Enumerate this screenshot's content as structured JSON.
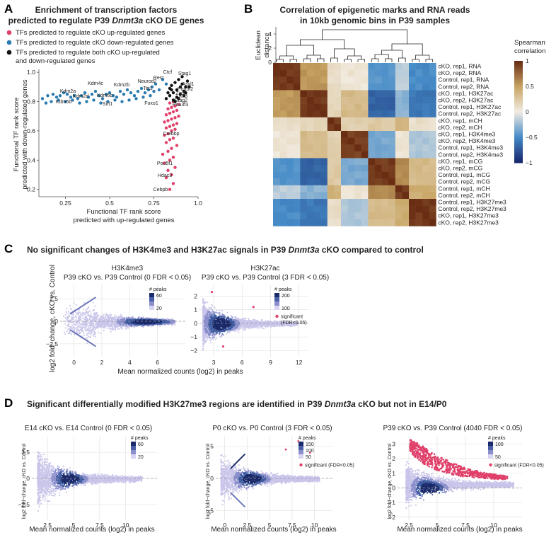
{
  "panels": {
    "A": {
      "letter": "A",
      "title_line1": "Enrichment of transcription factors",
      "title_line2_pre": "predicted to regulate P39 ",
      "title_line2_gene": "Dnmt3a",
      "title_line2_post": " cKO DE genes",
      "legend": [
        {
          "label": "TFs predicted to regulate cKO up-regulated genes",
          "color": "#e0406a"
        },
        {
          "label": "TFs predicted to regulate cKO down-regulated genes",
          "color": "#2b7bb0"
        },
        {
          "label": "TFs predicted to regulate both cKO up-regulated",
          "color": "#111111"
        },
        {
          "label": "and down-regulated genes",
          "color": ""
        }
      ],
      "ylabel_1": "Functional TF rank score",
      "ylabel_2": "predicted with down-regulated genes",
      "xlabel_1": "Functional TF rank score",
      "xlabel_2": "predicted with up-regulated genes"
    },
    "B": {
      "letter": "B",
      "title_line1": "Correlation of epigenetic marks and RNA reads",
      "title_line2": "in 10kb genomic bins in P39 samples",
      "dendro_ylabel_1": "Euclidean",
      "dendro_ylabel_2": "distance",
      "dendro_ticks": [
        "0",
        "2",
        "4"
      ],
      "colorbar_title_1": "Spearman",
      "colorbar_title_2": "correlation",
      "colorbar_ticks": [
        "1",
        "0.5",
        "0",
        "−0.5",
        "−1"
      ],
      "rows": [
        "cKO, rep1, RNA",
        "cKO, rep2, RNA",
        "Control, rep1, RNA",
        "Control, rep2, RNA",
        "cKO, rep1, H3K27ac",
        "cKO, rep2, H3K27ac",
        "Control, rep1, H3K27ac",
        "Control, rep2, H3K27ac",
        "cKO, rep1, mCH",
        "cKO, rep2, mCH",
        "cKO, rep1, H3K4me3",
        "cKO, rep2, H3K4me3",
        "Control, rep1, H3K4me3",
        "Control, rep2, H3K4me3",
        "cKO, rep1, mCG",
        "cKO, rep2, mCG",
        "Control, rep1, mCG",
        "Control, rep2, mCG",
        "Control, rep1, mCH",
        "Control, rep2, mCH",
        "Control, rep1, H3K27me3",
        "Control, rep2, H3K27me3",
        "cKO, rep1, H3K27me3",
        "cKO, rep2, H3K27me3"
      ]
    },
    "C": {
      "letter": "C",
      "title_pre": "No significant changes of H3K4me3 and H3K27ac signals in P39 ",
      "title_gene": "Dnmt3a",
      "title_post": " cKO compared to control",
      "ylabel": "log2 fold−change, cKO vs. Control",
      "xlabel": "Mean normalized counts (log2) in peaks",
      "plots": [
        {
          "title1": "H3K4me3",
          "title2": "P39 cKO vs. P39 Control (0 FDR < 0.05)",
          "legend_title": "# peaks",
          "legend_ticks": [
            "60",
            "20"
          ],
          "sig": ""
        },
        {
          "title1": "H3K27ac",
          "title2": "P39 cKO vs. P39 Control (3 FDR < 0.05)",
          "legend_title": "# peaks",
          "legend_ticks": [
            "200",
            "100"
          ],
          "sig1": "significant",
          "sig2": "(FDR<0.05)"
        }
      ]
    },
    "D": {
      "letter": "D",
      "title_pre": "Significant differentially modified H3K27me3 regions are identified in P39 ",
      "title_gene": "Dnmt3a",
      "title_post": " cKO but not in E14/P0",
      "ylabel": "log2 fold−change, cKO vs. Control",
      "xlabel": "Mean normalized counts (log2) in peaks",
      "plots": [
        {
          "title": "E14 cKO vs. E14 Control (0 FDR < 0.05)",
          "legend_title": "# peaks",
          "legend_ticks": [
            "60",
            "20"
          ],
          "sig": ""
        },
        {
          "title": "P0 cKO vs. P0 Control (3 FDR < 0.05)",
          "legend_title": "# peaks",
          "legend_ticks": [
            "150",
            "100",
            "50"
          ],
          "sig": "significant (FDR<0.05)"
        },
        {
          "title": "P39 cKO vs. P39 Control (4040 FDR < 0.05)",
          "legend_title": "# peaks",
          "legend_ticks": [
            "100",
            "50"
          ],
          "sig": "significant (FDR<0.05)"
        }
      ]
    }
  },
  "chart_data": [
    {
      "type": "scatter",
      "title": "Enrichment of transcription factors predicted to regulate P39 Dnmt3a cKO DE genes",
      "xlabel": "Functional TF rank score predicted with up-regulated genes",
      "ylabel": "Functional TF rank score predicted with down-regulated genes",
      "xlim": [
        0.1,
        1.0
      ],
      "ylim": [
        0.15,
        1.02
      ],
      "xticks": [
        "0.25",
        "0.5",
        "0.75",
        "1.0"
      ],
      "yticks": [
        "0.2",
        "0.4",
        "0.6",
        "0.8",
        "1.0"
      ],
      "series": [
        {
          "name": "down",
          "color": "#2b7bb0",
          "points": [
            [
              0.12,
              0.82
            ],
            [
              0.15,
              0.84
            ],
            [
              0.18,
              0.85
            ],
            [
              0.2,
              0.83
            ],
            [
              0.22,
              0.84
            ],
            [
              0.24,
              0.86
            ],
            [
              0.26,
              0.85
            ],
            [
              0.28,
              0.83
            ],
            [
              0.3,
              0.84
            ],
            [
              0.32,
              0.82
            ],
            [
              0.34,
              0.84
            ],
            [
              0.36,
              0.86
            ],
            [
              0.38,
              0.83
            ],
            [
              0.4,
              0.85
            ],
            [
              0.42,
              0.87
            ],
            [
              0.44,
              0.84
            ],
            [
              0.46,
              0.82
            ],
            [
              0.48,
              0.85
            ],
            [
              0.5,
              0.86
            ],
            [
              0.52,
              0.84
            ],
            [
              0.54,
              0.83
            ],
            [
              0.56,
              0.87
            ],
            [
              0.58,
              0.85
            ],
            [
              0.6,
              0.88
            ],
            [
              0.62,
              0.86
            ],
            [
              0.64,
              0.84
            ],
            [
              0.66,
              0.87
            ],
            [
              0.68,
              0.89
            ],
            [
              0.7,
              0.86
            ],
            [
              0.72,
              0.88
            ],
            [
              0.74,
              0.9
            ],
            [
              0.75,
              0.87
            ],
            [
              0.76,
              0.92
            ],
            [
              0.73,
              0.84
            ],
            [
              0.69,
              0.83
            ],
            [
              0.65,
              0.82
            ],
            [
              0.61,
              0.81
            ],
            [
              0.57,
              0.8
            ],
            [
              0.53,
              0.81
            ],
            [
              0.49,
              0.8
            ],
            [
              0.45,
              0.79
            ],
            [
              0.41,
              0.81
            ],
            [
              0.37,
              0.8
            ],
            [
              0.33,
              0.79
            ],
            [
              0.29,
              0.81
            ],
            [
              0.25,
              0.8
            ],
            [
              0.21,
              0.81
            ],
            [
              0.17,
              0.8
            ],
            [
              0.14,
              0.79
            ],
            [
              0.78,
              0.88
            ],
            [
              0.8,
              0.95
            ],
            [
              0.82,
              0.92
            ]
          ]
        },
        {
          "name": "up",
          "color": "#e0406a",
          "points": [
            [
              0.84,
              0.2
            ],
            [
              0.86,
              0.24
            ],
            [
              0.82,
              0.28
            ],
            [
              0.85,
              0.3
            ],
            [
              0.83,
              0.33
            ],
            [
              0.87,
              0.35
            ],
            [
              0.81,
              0.38
            ],
            [
              0.84,
              0.4
            ],
            [
              0.86,
              0.42
            ],
            [
              0.8,
              0.44
            ],
            [
              0.83,
              0.46
            ],
            [
              0.85,
              0.48
            ],
            [
              0.88,
              0.5
            ],
            [
              0.82,
              0.52
            ],
            [
              0.84,
              0.54
            ],
            [
              0.86,
              0.55
            ],
            [
              0.81,
              0.57
            ],
            [
              0.83,
              0.58
            ],
            [
              0.85,
              0.6
            ],
            [
              0.87,
              0.61
            ],
            [
              0.82,
              0.62
            ],
            [
              0.84,
              0.63
            ],
            [
              0.86,
              0.64
            ],
            [
              0.88,
              0.65
            ],
            [
              0.81,
              0.66
            ],
            [
              0.83,
              0.67
            ],
            [
              0.85,
              0.68
            ],
            [
              0.87,
              0.69
            ],
            [
              0.89,
              0.7
            ],
            [
              0.82,
              0.71
            ],
            [
              0.84,
              0.72
            ],
            [
              0.86,
              0.73
            ],
            [
              0.88,
              0.74
            ],
            [
              0.83,
              0.75
            ],
            [
              0.85,
              0.76
            ],
            [
              0.87,
              0.77
            ],
            [
              0.89,
              0.78
            ],
            [
              0.84,
              0.79
            ],
            [
              0.86,
              0.8
            ]
          ]
        },
        {
          "name": "both",
          "color": "#111111",
          "points": [
            [
              0.82,
              0.82
            ],
            [
              0.84,
              0.84
            ],
            [
              0.86,
              0.86
            ],
            [
              0.88,
              0.88
            ],
            [
              0.9,
              0.9
            ],
            [
              0.85,
              0.91
            ],
            [
              0.87,
              0.93
            ],
            [
              0.89,
              0.95
            ],
            [
              0.91,
              0.92
            ],
            [
              0.93,
              0.9
            ],
            [
              0.92,
              0.87
            ],
            [
              0.9,
              0.85
            ],
            [
              0.88,
              0.83
            ],
            [
              0.86,
              0.81
            ],
            [
              0.83,
              0.86
            ],
            [
              0.85,
              0.88
            ],
            [
              0.91,
              0.97
            ],
            [
              0.94,
              0.94
            ],
            [
              0.95,
              0.9
            ],
            [
              0.93,
              0.86
            ],
            [
              0.89,
              0.82
            ],
            [
              0.87,
              0.8
            ],
            [
              0.84,
              0.89
            ],
            [
              0.92,
              0.84
            ]
          ]
        }
      ],
      "annotations": [
        "Ctcf",
        "Stag1",
        "Rest",
        "Asxl1",
        "Neurod2",
        "Pou3f2",
        "Tet1",
        "Zic2",
        "Klf3",
        "Stag2",
        "Foxo1",
        "Pou3f3",
        "Kdm4c",
        "Kdm2b",
        "Kdm2a",
        "Kdm5b",
        "Kdm2d",
        "Kdm6b",
        "Sirt1",
        "Crebbp",
        "Pou5f1",
        "Hdac3",
        "Cebpb"
      ]
    },
    {
      "type": "heatmap",
      "title": "Correlation of epigenetic marks and RNA reads in 10kb genomic bins in P39 samples",
      "xlabel": "",
      "ylabel": "",
      "colorbar_range": [
        -1,
        1
      ],
      "groups": [
        4,
        4,
        2,
        4,
        4,
        2,
        4
      ],
      "group_names": [
        "RNA",
        "H3K27ac",
        "cKO mCH",
        "H3K4me3",
        "mCG",
        "Control mCH",
        "H3K27me3"
      ],
      "group_correlation": [
        [
          0.95,
          0.55,
          0.1,
          0.05,
          -0.45,
          -0.15,
          -0.5
        ],
        [
          0.55,
          0.95,
          0.15,
          0.35,
          -0.7,
          -0.3,
          -0.6
        ],
        [
          0.1,
          0.15,
          0.95,
          0.2,
          0.25,
          0.4,
          0.1
        ],
        [
          0.05,
          0.35,
          0.2,
          0.92,
          -0.35,
          0.05,
          -0.2
        ],
        [
          -0.45,
          -0.7,
          0.25,
          -0.35,
          0.95,
          0.6,
          0.35
        ],
        [
          -0.15,
          -0.3,
          0.4,
          0.05,
          0.6,
          0.95,
          0.45
        ],
        [
          -0.5,
          -0.6,
          0.1,
          -0.2,
          0.35,
          0.45,
          0.95
        ]
      ]
    },
    {
      "type": "scatter",
      "title": "H3K4me3 P39 cKO vs. P39 Control (0 FDR < 0.05)",
      "xlabel": "Mean normalized counts (log2) in peaks",
      "ylabel": "log2 fold-change, cKO vs. Control",
      "xticks": [
        "0",
        "2",
        "4",
        "6"
      ],
      "yticks": [
        "2.5",
        "0",
        "-2.5"
      ],
      "xlim": [
        -1,
        8
      ],
      "ylim": [
        -4,
        4
      ]
    },
    {
      "type": "scatter",
      "title": "H3K27ac P39 cKO vs. P39 Control (3 FDR < 0.05)",
      "xlabel": "Mean normalized counts (log2) in peaks",
      "ylabel": "log2 fold-change, cKO vs. Control",
      "xticks": [
        "3",
        "6",
        "9",
        "12"
      ],
      "yticks": [
        "2",
        "1",
        "0",
        "-1",
        "-2"
      ],
      "xlim": [
        1.5,
        13
      ],
      "ylim": [
        -2.5,
        2.8
      ]
    },
    {
      "type": "scatter",
      "title": "E14 cKO vs. E14 Control (0 FDR < 0.05)",
      "xticks": [
        "2.5",
        "5",
        "7.5",
        "10"
      ],
      "yticks": [
        "2.5",
        "0",
        "-2.5"
      ],
      "xlim": [
        1,
        13
      ],
      "ylim": [
        -4,
        4
      ]
    },
    {
      "type": "scatter",
      "title": "P0 cKO vs. P0 Control (3 FDR < 0.05)",
      "xticks": [
        "0",
        "2.5",
        "5",
        "7.5",
        "10"
      ],
      "yticks": [
        "5",
        "0",
        "-5"
      ],
      "xlim": [
        -1,
        12
      ],
      "ylim": [
        -6.5,
        6.5
      ]
    },
    {
      "type": "scatter",
      "title": "P39 cKO vs. P39 Control (4040 FDR < 0.05)",
      "xticks": [
        "2.5",
        "5",
        "7.5",
        "10"
      ],
      "yticks": [
        "3",
        "2",
        "1",
        "0",
        "-1",
        "-2"
      ],
      "xlim": [
        1.5,
        12.5
      ],
      "ylim": [
        -2.2,
        3.5
      ]
    }
  ]
}
